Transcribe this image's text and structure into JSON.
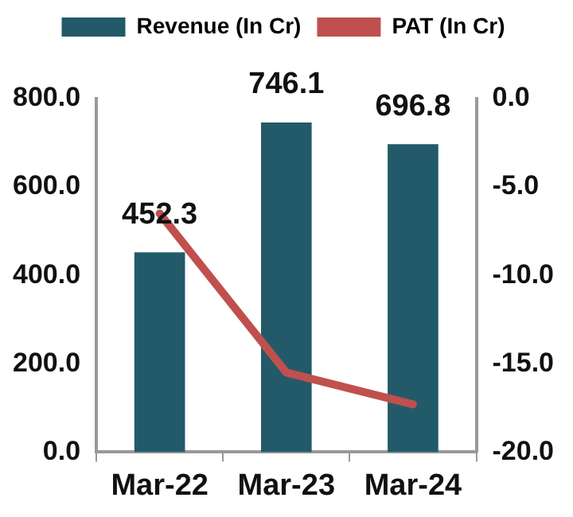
{
  "chart_data": {
    "type": "bar",
    "categories": [
      "Mar-22",
      "Mar-23",
      "Mar-24"
    ],
    "series": [
      {
        "name": "Revenue (In Cr)",
        "color": "#235a69",
        "values": [
          452.3,
          746.1,
          696.8
        ],
        "value_labels": [
          "452.3",
          "746.1",
          "696.8"
        ]
      },
      {
        "name": "PAT (In Cr)",
        "type": "line",
        "axis": "y2",
        "color": "#c0504d",
        "values": [
          -6.5,
          -15.5,
          -17.3
        ],
        "marker": "none"
      }
    ],
    "ylim": [
      0,
      800
    ],
    "yticks": [
      {
        "value": 0,
        "label": "0.0"
      },
      {
        "value": 200,
        "label": "200.0"
      },
      {
        "value": 400,
        "label": "400.0"
      },
      {
        "value": 600,
        "label": "600.0"
      },
      {
        "value": 800,
        "label": "800.0"
      }
    ],
    "y2lim": [
      -20,
      0
    ],
    "y2ticks": [
      {
        "value": -20,
        "label": "-20.0"
      },
      {
        "value": -15,
        "label": "-15.0"
      },
      {
        "value": -10,
        "label": "-10.0"
      },
      {
        "value": -5,
        "label": "-5.0"
      },
      {
        "value": 0,
        "label": "0.0"
      }
    ],
    "grid": false,
    "legend": "top"
  }
}
